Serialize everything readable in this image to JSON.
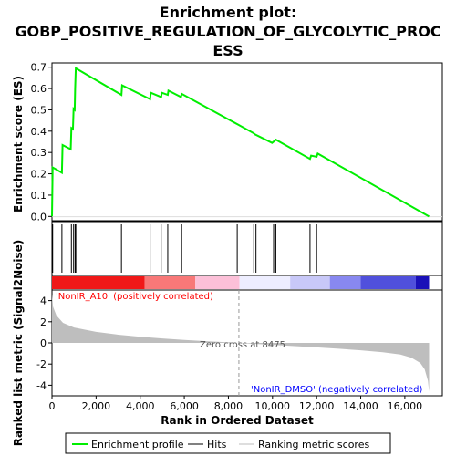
{
  "chart_data": {
    "type": "line",
    "title_lines": [
      "Enrichment plot:",
      "GOBP_POSITIVE_REGULATION_OF_GLYCOLYTIC_PROC",
      "ESS"
    ],
    "es_panel": {
      "ylabel": "Enrichment score (ES)",
      "ylim": [
        -0.02,
        0.72
      ],
      "yticks": [
        0.0,
        0.1,
        0.2,
        0.3,
        0.4,
        0.5,
        0.6,
        0.7
      ],
      "ytick_labels": [
        "0.0",
        "0.1",
        "0.2",
        "0.3",
        "0.4",
        "0.5",
        "0.6",
        "0.7"
      ],
      "series": [
        {
          "name": "Enrichment profile",
          "color": "#00ee00",
          "x": [
            0,
            30,
            450,
            480,
            850,
            880,
            950,
            980,
            1030,
            1050,
            1080,
            3150,
            3180,
            4450,
            4480,
            4950,
            4980,
            5250,
            5280,
            5850,
            5880,
            8450,
            9150,
            9200,
            9980,
            10100,
            10150,
            11700,
            11750,
            12000,
            12050,
            17100
          ],
          "y": [
            0.0,
            0.23,
            0.205,
            0.335,
            0.315,
            0.415,
            0.41,
            0.505,
            0.5,
            0.6,
            0.695,
            0.57,
            0.615,
            0.55,
            0.58,
            0.56,
            0.58,
            0.57,
            0.59,
            0.56,
            0.575,
            0.43,
            0.39,
            0.385,
            0.345,
            0.355,
            0.36,
            0.27,
            0.285,
            0.28,
            0.295,
            0.0
          ]
        }
      ],
      "hits": [
        30,
        450,
        880,
        980,
        1050,
        1080,
        3150,
        4450,
        4950,
        5250,
        5880,
        8400,
        9150,
        9250,
        10050,
        10150,
        11700,
        12000
      ]
    },
    "rank_panel": {
      "ylabel": "Ranked list metric (Signal2Noise)",
      "xlabel": "Rank in Ordered Dataset",
      "xlim": [
        0,
        17700
      ],
      "xticks": [
        0,
        2000,
        4000,
        6000,
        8000,
        10000,
        12000,
        14000,
        16000
      ],
      "xtick_labels": [
        "0",
        "2,000",
        "4,000",
        "6,000",
        "8,000",
        "10,000",
        "12,000",
        "14,000",
        "16,000"
      ],
      "ylim": [
        -5,
        5
      ],
      "yticks": [
        4,
        2,
        0,
        -2,
        -4
      ],
      "ytick_labels": [
        "4",
        "2",
        "0",
        "-2",
        "-4"
      ],
      "metric_curve": {
        "x": [
          0,
          50,
          200,
          500,
          1000,
          2000,
          3000,
          4000,
          5000,
          6000,
          7000,
          8000,
          8475,
          9000,
          10000,
          11000,
          12000,
          13000,
          14000,
          15000,
          15800,
          16300,
          16700,
          16900,
          17050,
          17100
        ],
        "y": [
          4.6,
          3.4,
          2.6,
          1.9,
          1.45,
          1.05,
          0.78,
          0.58,
          0.42,
          0.28,
          0.16,
          0.05,
          0.0,
          -0.06,
          -0.18,
          -0.3,
          -0.42,
          -0.55,
          -0.7,
          -0.88,
          -1.1,
          -1.4,
          -1.9,
          -2.5,
          -3.6,
          -4.6
        ]
      },
      "zero_cross_rank": 8475,
      "zero_cross_label": "Zero cross at 8475",
      "pos_label": "'NonIR_A10' (positively correlated)",
      "neg_label": "'NonIR_DMSO' (negatively correlated)",
      "pos_color": "#ff0000",
      "neg_color": "#0000ff",
      "fill_color": "#bebebe"
    },
    "colorbar": {
      "segments": [
        {
          "from": 0,
          "to": 4200,
          "color": "#f01818"
        },
        {
          "from": 4200,
          "to": 6500,
          "color": "#f87878"
        },
        {
          "from": 6500,
          "to": 8500,
          "color": "#fcc0d8"
        },
        {
          "from": 8500,
          "to": 10800,
          "color": "#eeeeff"
        },
        {
          "from": 10800,
          "to": 12600,
          "color": "#c8c8f8"
        },
        {
          "from": 12600,
          "to": 14000,
          "color": "#8888f0"
        },
        {
          "from": 14000,
          "to": 16500,
          "color": "#5050dc"
        },
        {
          "from": 16500,
          "to": 17100,
          "color": "#1a10b8"
        }
      ]
    },
    "legend": {
      "items": [
        {
          "label": "Enrichment profile",
          "color": "#00ee00"
        },
        {
          "label": "Hits",
          "color": "#000000"
        },
        {
          "label": "Ranking metric scores",
          "color": "#bebebe"
        }
      ]
    }
  }
}
